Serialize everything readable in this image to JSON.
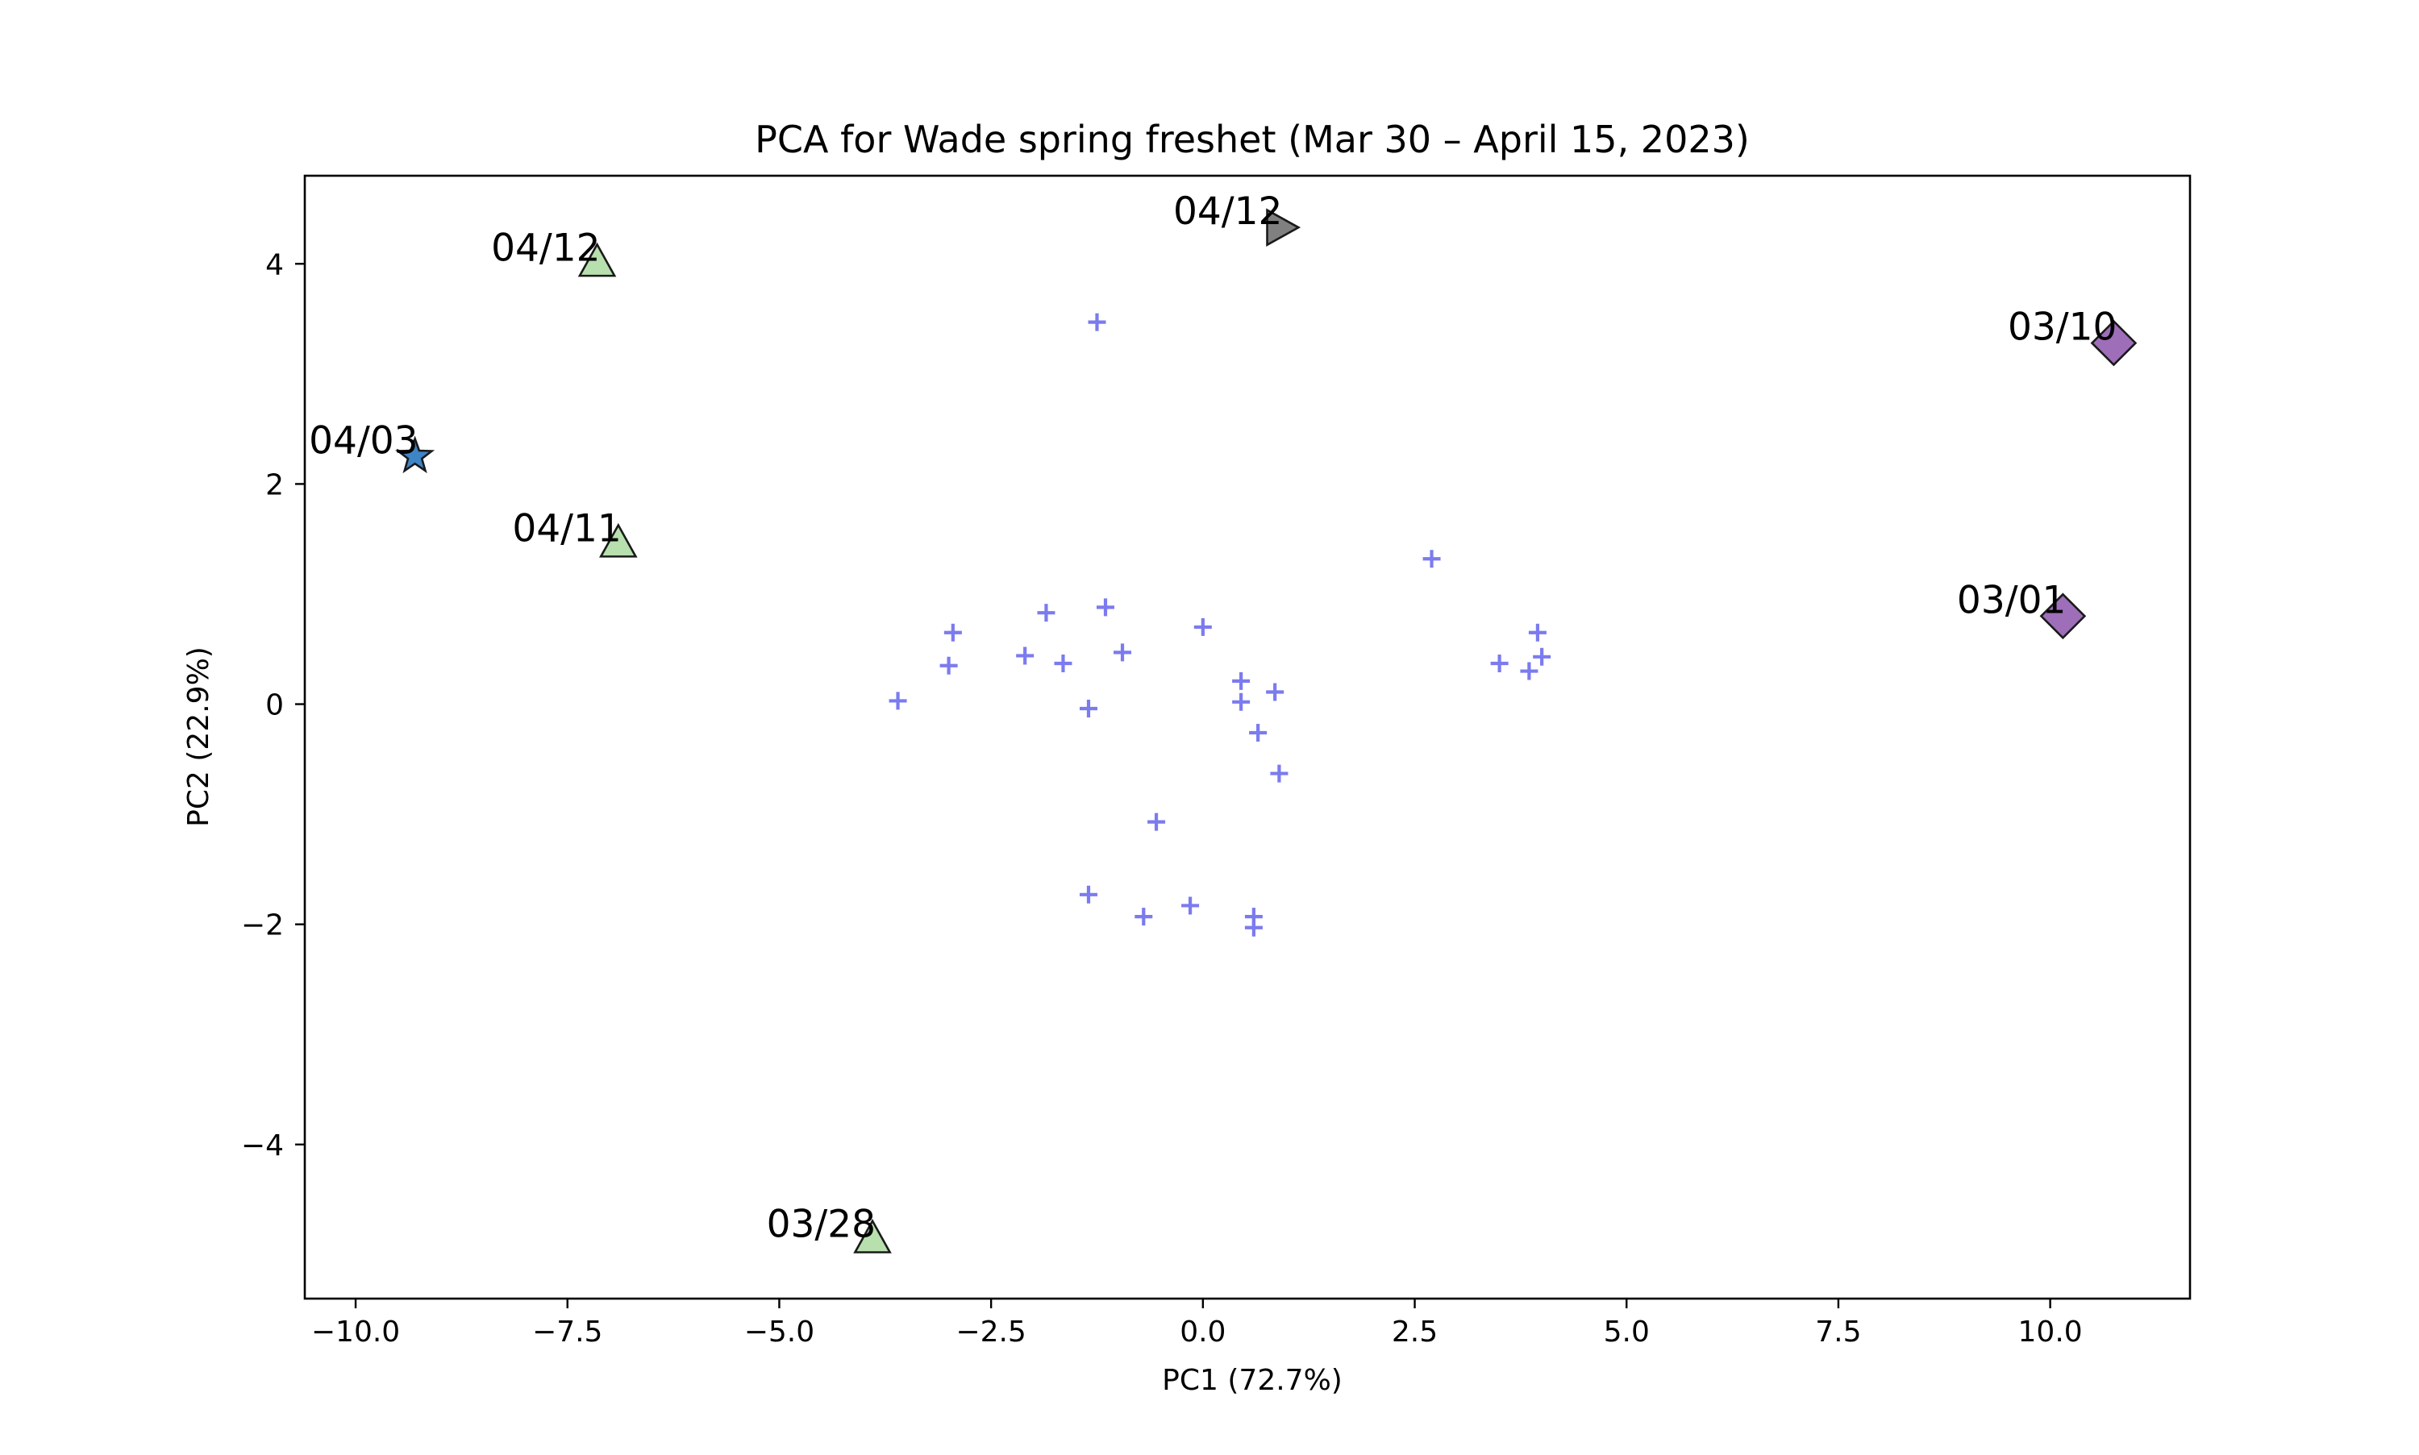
{
  "chart_data": {
    "type": "scatter",
    "title": "PCA for Wade spring freshet (Mar 30 – April 15, 2023)",
    "xlabel": "PC1 (72.7%)",
    "ylabel": "PC2 (22.9%)",
    "xlim": [
      -10.6,
      11.65
    ],
    "ylim": [
      -5.4,
      4.8
    ],
    "xticks": [
      -10.0,
      -7.5,
      -5.0,
      -2.5,
      0.0,
      2.5,
      5.0,
      7.5,
      10.0
    ],
    "xtick_labels": [
      "−10.0",
      "−7.5",
      "−5.0",
      "−2.5",
      "0.0",
      "2.5",
      "5.0",
      "7.5",
      "10.0"
    ],
    "yticks": [
      -4,
      -2,
      0,
      2,
      4
    ],
    "ytick_labels": [
      "−4",
      "−2",
      "0",
      "2",
      "4"
    ],
    "grid": false,
    "series": [
      {
        "marker": "plus",
        "color": "#7b7bef",
        "points": [
          [
            -1.25,
            3.47
          ],
          [
            2.7,
            1.32
          ],
          [
            -1.15,
            0.88
          ],
          [
            -1.85,
            0.83
          ],
          [
            0.0,
            0.7
          ],
          [
            -2.95,
            0.65
          ],
          [
            3.95,
            0.65
          ],
          [
            -0.95,
            0.47
          ],
          [
            -2.1,
            0.44
          ],
          [
            4.0,
            0.43
          ],
          [
            -1.65,
            0.37
          ],
          [
            3.5,
            0.37
          ],
          [
            -3.0,
            0.35
          ],
          [
            3.85,
            0.3
          ],
          [
            0.45,
            0.21
          ],
          [
            0.85,
            0.11
          ],
          [
            -3.6,
            0.03
          ],
          [
            0.45,
            0.02
          ],
          [
            -1.35,
            -0.04
          ],
          [
            0.65,
            -0.26
          ],
          [
            0.9,
            -0.63
          ],
          [
            -0.55,
            -1.07
          ],
          [
            -1.35,
            -1.73
          ],
          [
            -0.15,
            -1.83
          ],
          [
            -0.7,
            -1.93
          ],
          [
            0.6,
            -1.93
          ],
          [
            0.6,
            -2.03
          ]
        ]
      },
      {
        "marker": "triangle-up",
        "color": "#b7e0ae",
        "points": [
          {
            "x": -7.15,
            "y": 4.0,
            "label": "04/12"
          },
          {
            "x": -6.9,
            "y": 1.45,
            "label": "04/11"
          },
          {
            "x": -3.9,
            "y": -4.87,
            "label": "03/28"
          }
        ]
      },
      {
        "marker": "triangle-right",
        "color": "#808080",
        "points": [
          {
            "x": 0.9,
            "y": 4.33,
            "label": "04/12"
          }
        ]
      },
      {
        "marker": "star",
        "color": "#3d85c6",
        "points": [
          {
            "x": -9.3,
            "y": 2.25,
            "label": "04/03"
          }
        ]
      },
      {
        "marker": "diamond",
        "color": "#9e6eb9",
        "points": [
          {
            "x": 10.75,
            "y": 3.28,
            "label": "03/10"
          },
          {
            "x": 10.15,
            "y": 0.8,
            "label": "03/01"
          }
        ]
      }
    ]
  }
}
